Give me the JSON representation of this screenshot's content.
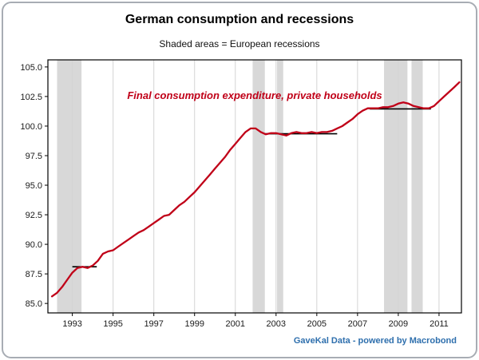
{
  "title": "German consumption and recessions",
  "subtitle": "Shaded areas = European recessions",
  "attribution": "GaveKal Data - powered by Macrobond",
  "chart_data": {
    "type": "line",
    "title": "German consumption and recessions",
    "subtitle": "Shaded areas = European recessions",
    "annotation": "Final consumption expenditure, private households",
    "legend_position": "none",
    "grid": "vertical-light",
    "x_range": [
      1991.8,
      2012.1
    ],
    "y_range": [
      84.2,
      105.6
    ],
    "x_ticks": [
      1993,
      1995,
      1997,
      1999,
      2001,
      2003,
      2005,
      2007,
      2009,
      2011
    ],
    "y_ticks": [
      85.0,
      87.5,
      90.0,
      92.5,
      95.0,
      97.5,
      100.0,
      102.5,
      105.0
    ],
    "line_color": "#c00018",
    "band_color": "#d8d8d8",
    "plateau_color": "#000000",
    "recession_bands": [
      [
        1992.25,
        1993.45
      ],
      [
        2001.85,
        2002.45
      ],
      [
        2003.05,
        2003.35
      ],
      [
        2008.3,
        2009.45
      ],
      [
        2009.65,
        2010.2
      ]
    ],
    "plateau_segments": [
      {
        "x1": 1993.0,
        "x2": 1994.2,
        "y": 88.1
      },
      {
        "x1": 2002.4,
        "x2": 2006.0,
        "y": 99.35
      },
      {
        "x1": 2007.6,
        "x2": 2010.6,
        "y": 101.45
      }
    ],
    "series": [
      {
        "name": "Final consumption expenditure, private households",
        "x_start": 1992.0,
        "x_step": 0.25,
        "values": [
          85.6,
          85.9,
          86.4,
          87.0,
          87.6,
          88.0,
          88.1,
          88.0,
          88.2,
          88.6,
          89.2,
          89.4,
          89.5,
          89.8,
          90.1,
          90.4,
          90.7,
          91.0,
          91.2,
          91.5,
          91.8,
          92.1,
          92.4,
          92.5,
          92.9,
          93.3,
          93.6,
          94.0,
          94.4,
          94.9,
          95.4,
          95.9,
          96.4,
          96.9,
          97.4,
          98.0,
          98.5,
          99.0,
          99.5,
          99.8,
          99.8,
          99.5,
          99.3,
          99.4,
          99.4,
          99.3,
          99.2,
          99.4,
          99.5,
          99.4,
          99.4,
          99.5,
          99.4,
          99.5,
          99.5,
          99.6,
          99.8,
          100.0,
          100.3,
          100.6,
          101.0,
          101.3,
          101.5,
          101.5,
          101.5,
          101.6,
          101.6,
          101.7,
          101.9,
          102.0,
          101.9,
          101.7,
          101.6,
          101.5,
          101.5,
          101.7,
          102.1,
          102.5,
          102.9,
          103.3,
          103.7
        ]
      }
    ]
  }
}
